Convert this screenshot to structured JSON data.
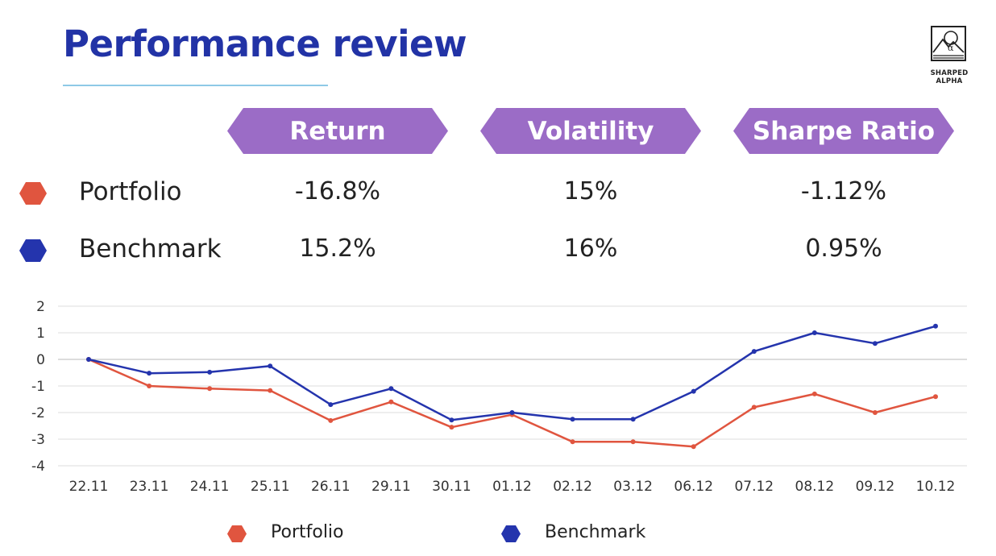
{
  "title": "Performance review",
  "logo_text": "SHARPED ALPHA",
  "metrics": {
    "headers": [
      "Return",
      "Volatility",
      "Sharpe Ratio"
    ],
    "rows": [
      {
        "label": "Portfolio",
        "color": "#e0553f",
        "values": [
          "-16.8%",
          "15%",
          "-1.12%"
        ]
      },
      {
        "label": "Benchmark",
        "color": "#2434ad",
        "values": [
          "15.2%",
          "16%",
          "0.95%"
        ]
      }
    ]
  },
  "colors": {
    "title": "#2233a6",
    "header_fill": "#9b6cc6",
    "accent_rule": "#8ec9e6"
  },
  "chart_data": {
    "type": "line",
    "categories": [
      "22.11",
      "23.11",
      "24.11",
      "25.11",
      "26.11",
      "29.11",
      "30.11",
      "01.12",
      "02.12",
      "03.12",
      "06.12",
      "07.12",
      "08.12",
      "09.12",
      "10.12"
    ],
    "series": [
      {
        "name": "Portfolio",
        "color": "#e0553f",
        "values": [
          0,
          -1.0,
          -1.1,
          -1.17,
          -2.3,
          -1.6,
          -2.55,
          -2.08,
          -3.1,
          -3.1,
          -3.28,
          -1.8,
          -1.3,
          -2.0,
          -1.4
        ]
      },
      {
        "name": "Benchmark",
        "color": "#2434ad",
        "values": [
          0,
          -0.52,
          -0.48,
          -0.25,
          -1.7,
          -1.1,
          -2.28,
          -2.0,
          -2.25,
          -2.25,
          -1.2,
          0.3,
          1.0,
          0.6,
          1.25
        ]
      }
    ],
    "yticks": [
      "2",
      "1",
      "0",
      "-1",
      "-2",
      "-3",
      "-4"
    ],
    "ylim": [
      -4,
      2
    ],
    "grid": true,
    "legend": "bottom"
  }
}
